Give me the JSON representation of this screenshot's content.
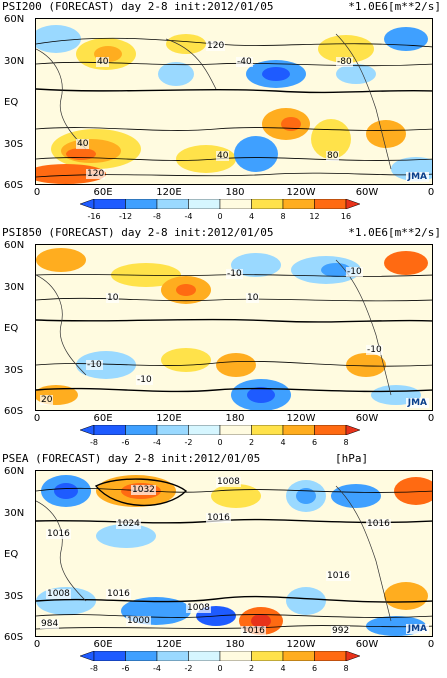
{
  "panels": [
    {
      "title": "PSI200 (FORECAST) day 2-8 init:2012/01/05",
      "unit": "*1.0E6[m**2/s]",
      "colorbar_ticks": [
        "-16",
        "-12",
        "-8",
        "-4",
        "0",
        "4",
        "8",
        "12",
        "16"
      ],
      "contour_labels": [
        "120",
        "80",
        "40",
        "-40",
        "-80",
        "-40",
        "120",
        "40",
        "-80",
        "40",
        "0",
        "-40",
        "80",
        "120"
      ]
    },
    {
      "title": "PSI850 (FORECAST) day 2-8 init:2012/01/05",
      "unit": "*1.0E6[m**2/s]",
      "colorbar_ticks": [
        "-8",
        "-6",
        "-4",
        "-2",
        "0",
        "2",
        "4",
        "6",
        "8"
      ],
      "contour_labels": [
        "10",
        "-10",
        "10",
        "-10",
        "10",
        "0",
        "-10",
        "-10",
        "-10",
        "0",
        "20",
        "-10",
        "0"
      ]
    },
    {
      "title": "PSEA (FORECAST) day 2-8 init:2012/01/05",
      "unit": "[hPa]",
      "colorbar_ticks": [
        "-8",
        "-6",
        "-4",
        "-2",
        "0",
        "2",
        "4",
        "6",
        "8"
      ],
      "contour_labels": [
        "1032",
        "1008",
        "1024",
        "1016",
        "1016",
        "1016",
        "1008",
        "1024",
        "1016",
        "1008",
        "1016",
        "1008",
        "1008",
        "1000",
        "984",
        "1016",
        "992",
        "1000",
        "1016"
      ]
    }
  ],
  "axes": {
    "y_ticks": [
      "60N",
      "30N",
      "EQ",
      "30S",
      "60S"
    ],
    "x_ticks": [
      "0",
      "60E",
      "120E",
      "180",
      "120W",
      "60W",
      "0"
    ]
  },
  "logo": "JMA",
  "colors": {
    "deep_blue": "#1e5bff",
    "blue": "#3fa0ff",
    "light_blue": "#9ad9ff",
    "pale_cyan": "#d6f6ff",
    "pale_yellow": "#fffbe0",
    "yellow": "#ffe24a",
    "orange": "#ffad1f",
    "dark_orange": "#ff6a12",
    "red": "#e8321a"
  }
}
